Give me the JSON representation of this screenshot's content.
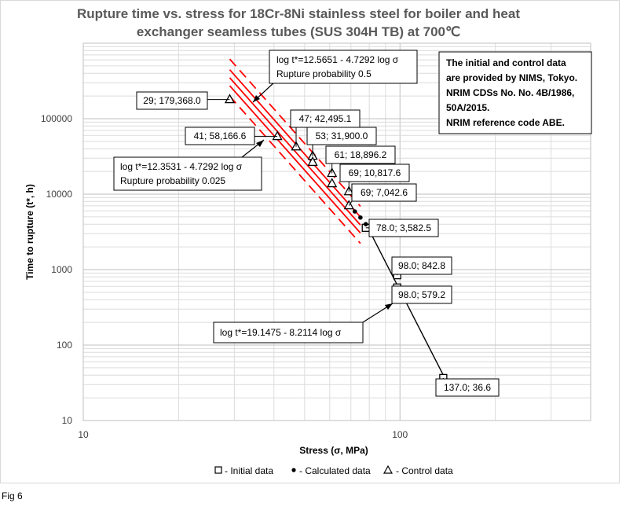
{
  "caption": "Fig 6",
  "chart_data": {
    "type": "scatter",
    "title_lines": [
      "Rupture time vs. stress for 18Cr-8Ni stainless steel for boiler and heat",
      "exchanger seamless tubes (SUS 304H TB) at 700℃"
    ],
    "xlabel": "Stress (σ, MPa)",
    "ylabel": "Time to rupture (t*, h)",
    "x_scale": "log",
    "y_scale": "log",
    "xlim": [
      10,
      400
    ],
    "ylim": [
      10,
      1000000
    ],
    "x_ticks": [
      10,
      100
    ],
    "x_tick_labels": [
      "10",
      "100"
    ],
    "y_ticks": [
      10,
      100,
      1000,
      10000,
      100000
    ],
    "y_tick_labels": [
      "10",
      "100",
      "1000",
      "10000",
      "100000"
    ],
    "grid": true,
    "series": [
      {
        "name": "Initial data",
        "marker": "square",
        "points": [
          [
            78.0,
            3582.5
          ],
          [
            98.0,
            842.8
          ],
          [
            98.0,
            579.2
          ],
          [
            137.0,
            36.6
          ]
        ]
      },
      {
        "name": "Calculated data",
        "marker": "dot",
        "points": [
          [
            72.0,
            5900
          ],
          [
            75.0,
            4900
          ],
          [
            78.0,
            4000
          ]
        ]
      },
      {
        "name": "Control data",
        "marker": "triangle",
        "points": [
          [
            29,
            179368.0
          ],
          [
            41,
            58166.6
          ],
          [
            47,
            42495.1
          ],
          [
            53,
            31900.0
          ],
          [
            53,
            26500
          ],
          [
            61,
            18896.2
          ],
          [
            61,
            13800
          ],
          [
            69,
            10817.6
          ],
          [
            69,
            7042.6
          ]
        ]
      }
    ],
    "lines": [
      {
        "label": "log t*=19.1475 - 8.2114 log σ",
        "style": "solid",
        "color": "#000000",
        "intercept": 19.1475,
        "slope": -8.2114,
        "x_range": [
          78,
          137
        ]
      },
      {
        "label": "log t*=12.5651 - 4.7292 log σ",
        "detail": "Rupture probability 0.5",
        "style": "solid",
        "color": "#ff0000",
        "intercept": 12.5651,
        "slope": -4.7292,
        "x_range": [
          29,
          75
        ]
      },
      {
        "label": "log t*=12.3531 - 4.7292 log σ",
        "detail": "Rupture probability 0.025",
        "style": "solid",
        "color": "#ff0000",
        "intercept": 12.3531,
        "slope": -4.7292,
        "x_range": [
          29,
          75
        ]
      },
      {
        "label": "",
        "style": "solid",
        "color": "#ff0000",
        "intercept": 12.459,
        "slope": -4.7292,
        "x_range": [
          29,
          75
        ]
      },
      {
        "label": "",
        "style": "dashed",
        "color": "#ff0000",
        "intercept": 12.706,
        "slope": -4.7292,
        "x_range": [
          29,
          75
        ]
      },
      {
        "label": "",
        "style": "dashed",
        "color": "#ff0000",
        "intercept": 12.215,
        "slope": -4.7292,
        "x_range": [
          29,
          75
        ]
      }
    ],
    "point_labels": [
      "29; 179,368.0",
      "41; 58,166.6",
      "47; 42,495.1",
      "53; 31,900.0",
      "61; 18,896.2",
      "69; 10,817.6",
      "69; 7,042.6",
      "78.0; 3,582.5",
      "98.0; 842.8",
      "98.0; 579.2",
      "137.0; 36.6"
    ],
    "note": [
      "The initial and control data",
      "are provided by NIMS, Tokyo.",
      "NRIM CDSs No. No. 4B/1986,",
      "50A/2015.",
      "NRIM reference code ABE."
    ],
    "legend": {
      "placement": "bottom",
      "items": [
        "- Initial data",
        "- Calculated data",
        "- Control data"
      ]
    },
    "colors": {
      "fit_red": "#ff0000",
      "marker": "#000000",
      "grid": "#d0d0d0"
    }
  }
}
